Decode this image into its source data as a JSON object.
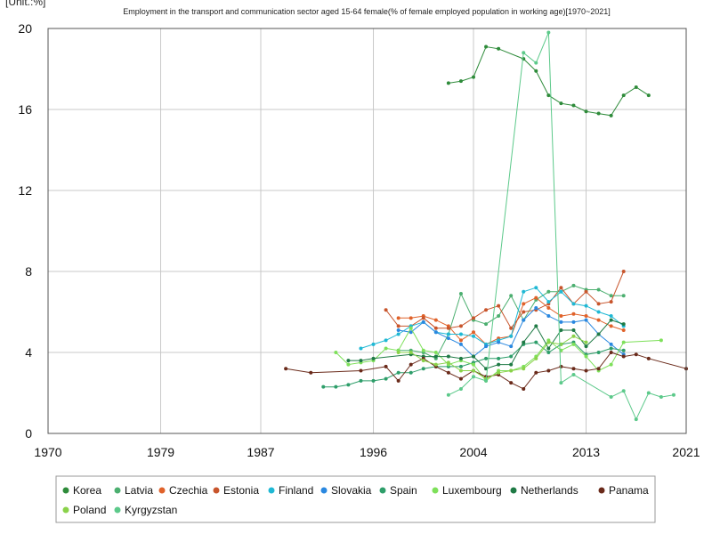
{
  "chart_data": {
    "type": "line",
    "unit_label": "[Unit.:%]",
    "title": "Employment in the transport and communication sector aged 15-64 female(% of female employed population in working age)[1970~2021]",
    "xlabel": "",
    "ylabel": "",
    "xlim": [
      1970,
      2021
    ],
    "ylim": [
      0,
      20
    ],
    "x_ticks": [
      1970,
      1979,
      1987,
      1996,
      2004,
      2013,
      2021
    ],
    "y_ticks": [
      0,
      4,
      8,
      12,
      16,
      20
    ],
    "grid": true,
    "legend_position": "bottom",
    "series": [
      {
        "name": "Korea",
        "color": "#2e8b3a",
        "points": [
          [
            2002,
            17.3
          ],
          [
            2003,
            17.4
          ],
          [
            2004,
            17.6
          ],
          [
            2005,
            19.1
          ],
          [
            2006,
            19.0
          ],
          [
            2008,
            18.5
          ],
          [
            2009,
            17.9
          ],
          [
            2010,
            16.7
          ],
          [
            2011,
            16.3
          ],
          [
            2012,
            16.2
          ],
          [
            2013,
            15.9
          ],
          [
            2014,
            15.8
          ],
          [
            2015,
            15.7
          ],
          [
            2016,
            16.7
          ],
          [
            2017,
            17.1
          ],
          [
            2018,
            16.7
          ]
        ]
      },
      {
        "name": "Latvia",
        "color": "#4caf70",
        "points": [
          [
            1998,
            4.1
          ],
          [
            1999,
            4.1
          ],
          [
            2000,
            4.0
          ],
          [
            2001,
            3.7
          ],
          [
            2002,
            4.9
          ],
          [
            2003,
            6.9
          ],
          [
            2004,
            5.6
          ],
          [
            2005,
            5.4
          ],
          [
            2006,
            5.8
          ],
          [
            2007,
            6.8
          ],
          [
            2008,
            5.6
          ],
          [
            2009,
            6.6
          ],
          [
            2010,
            7.0
          ],
          [
            2011,
            7.0
          ],
          [
            2012,
            7.3
          ],
          [
            2013,
            7.1
          ],
          [
            2014,
            7.1
          ],
          [
            2015,
            6.8
          ],
          [
            2016,
            6.8
          ]
        ]
      },
      {
        "name": "Czechia",
        "color": "#e0622a",
        "points": [
          [
            1998,
            5.7
          ],
          [
            1999,
            5.7
          ],
          [
            2000,
            5.8
          ],
          [
            2001,
            5.6
          ],
          [
            2002,
            5.3
          ],
          [
            2003,
            4.6
          ],
          [
            2004,
            5.0
          ],
          [
            2005,
            4.4
          ],
          [
            2006,
            4.7
          ],
          [
            2007,
            4.8
          ],
          [
            2008,
            6.4
          ],
          [
            2009,
            6.7
          ],
          [
            2010,
            6.2
          ],
          [
            2011,
            5.8
          ],
          [
            2012,
            5.9
          ],
          [
            2013,
            5.8
          ],
          [
            2014,
            5.6
          ],
          [
            2015,
            5.3
          ],
          [
            2016,
            5.1
          ]
        ]
      },
      {
        "name": "Estonia",
        "color": "#c8552c",
        "points": [
          [
            1997,
            6.1
          ],
          [
            1998,
            5.3
          ],
          [
            1999,
            5.3
          ],
          [
            2000,
            5.7
          ],
          [
            2001,
            5.2
          ],
          [
            2002,
            5.2
          ],
          [
            2003,
            5.3
          ],
          [
            2004,
            5.7
          ],
          [
            2005,
            6.1
          ],
          [
            2006,
            6.3
          ],
          [
            2007,
            5.2
          ],
          [
            2008,
            6.0
          ],
          [
            2009,
            6.1
          ],
          [
            2010,
            6.4
          ],
          [
            2011,
            7.2
          ],
          [
            2012,
            6.4
          ],
          [
            2013,
            7.0
          ],
          [
            2014,
            6.4
          ],
          [
            2015,
            6.5
          ],
          [
            2016,
            8.0
          ]
        ]
      },
      {
        "name": "Finland",
        "color": "#1fb8d4",
        "points": [
          [
            1995,
            4.2
          ],
          [
            1996,
            4.4
          ],
          [
            1997,
            4.6
          ],
          [
            1998,
            4.9
          ],
          [
            1999,
            5.3
          ],
          [
            2000,
            5.5
          ],
          [
            2001,
            5.0
          ],
          [
            2002,
            4.9
          ],
          [
            2003,
            4.9
          ],
          [
            2004,
            4.8
          ],
          [
            2005,
            4.4
          ],
          [
            2006,
            4.6
          ],
          [
            2007,
            4.8
          ],
          [
            2008,
            7.0
          ],
          [
            2009,
            7.2
          ],
          [
            2010,
            6.5
          ],
          [
            2011,
            7.0
          ],
          [
            2012,
            6.4
          ],
          [
            2013,
            6.3
          ],
          [
            2014,
            6.0
          ],
          [
            2015,
            5.8
          ],
          [
            2016,
            5.3
          ]
        ]
      },
      {
        "name": "Slovakia",
        "color": "#2a88e0",
        "points": [
          [
            1998,
            5.1
          ],
          [
            1999,
            5.0
          ],
          [
            2000,
            5.5
          ],
          [
            2001,
            5.0
          ],
          [
            2002,
            4.7
          ],
          [
            2003,
            4.4
          ],
          [
            2004,
            3.8
          ],
          [
            2005,
            4.3
          ],
          [
            2006,
            4.5
          ],
          [
            2007,
            4.3
          ],
          [
            2008,
            5.6
          ],
          [
            2009,
            6.2
          ],
          [
            2010,
            5.8
          ],
          [
            2011,
            5.5
          ],
          [
            2012,
            5.5
          ],
          [
            2013,
            5.6
          ],
          [
            2014,
            4.9
          ],
          [
            2015,
            4.4
          ],
          [
            2016,
            3.9
          ]
        ]
      },
      {
        "name": "Spain",
        "color": "#2e9e6a",
        "points": [
          [
            1992,
            2.3
          ],
          [
            1993,
            2.3
          ],
          [
            1994,
            2.4
          ],
          [
            1995,
            2.6
          ],
          [
            1996,
            2.6
          ],
          [
            1997,
            2.7
          ],
          [
            1998,
            3.0
          ],
          [
            1999,
            3.0
          ],
          [
            2000,
            3.2
          ],
          [
            2001,
            3.3
          ],
          [
            2002,
            3.3
          ],
          [
            2003,
            3.3
          ],
          [
            2004,
            3.5
          ],
          [
            2005,
            3.7
          ],
          [
            2006,
            3.7
          ],
          [
            2007,
            3.8
          ],
          [
            2008,
            4.4
          ],
          [
            2009,
            4.5
          ],
          [
            2010,
            4.0
          ],
          [
            2011,
            4.4
          ],
          [
            2012,
            4.5
          ],
          [
            2013,
            3.9
          ],
          [
            2014,
            4.0
          ],
          [
            2015,
            4.2
          ],
          [
            2016,
            4.1
          ]
        ]
      },
      {
        "name": "Luxembourg",
        "color": "#7ee05a",
        "points": [
          [
            1993,
            4.0
          ],
          [
            1994,
            3.4
          ],
          [
            1995,
            3.5
          ],
          [
            1996,
            3.6
          ],
          [
            1997,
            4.2
          ],
          [
            1998,
            4.1
          ],
          [
            1999,
            5.2
          ],
          [
            2000,
            4.1
          ],
          [
            2001,
            4.0
          ],
          [
            2002,
            3.4
          ],
          [
            2003,
            3.6
          ],
          [
            2004,
            3.4
          ],
          [
            2005,
            2.6
          ],
          [
            2006,
            3.1
          ],
          [
            2007,
            3.1
          ],
          [
            2008,
            3.3
          ],
          [
            2009,
            3.8
          ],
          [
            2010,
            4.6
          ],
          [
            2011,
            4.1
          ],
          [
            2012,
            4.4
          ],
          [
            2013,
            3.8
          ],
          [
            2014,
            3.1
          ],
          [
            2015,
            3.4
          ],
          [
            2016,
            4.5
          ],
          [
            2019,
            4.6
          ]
        ]
      },
      {
        "name": "Netherlands",
        "color": "#1f7a45",
        "points": [
          [
            1994,
            3.6
          ],
          [
            1995,
            3.6
          ],
          [
            1996,
            3.7
          ],
          [
            1999,
            3.9
          ],
          [
            2000,
            3.8
          ],
          [
            2001,
            3.8
          ],
          [
            2002,
            3.8
          ],
          [
            2003,
            3.7
          ],
          [
            2004,
            3.8
          ],
          [
            2005,
            3.2
          ],
          [
            2006,
            3.4
          ],
          [
            2007,
            3.4
          ],
          [
            2008,
            4.5
          ],
          [
            2009,
            5.3
          ],
          [
            2010,
            4.2
          ],
          [
            2011,
            5.1
          ],
          [
            2012,
            5.1
          ],
          [
            2013,
            4.3
          ],
          [
            2014,
            4.9
          ],
          [
            2015,
            5.6
          ],
          [
            2016,
            5.4
          ]
        ]
      },
      {
        "name": "Panama",
        "color": "#6a2a1a",
        "points": [
          [
            1989,
            3.2
          ],
          [
            1991,
            3.0
          ],
          [
            1995,
            3.1
          ],
          [
            1997,
            3.3
          ],
          [
            1998,
            2.6
          ],
          [
            1999,
            3.4
          ],
          [
            2000,
            3.7
          ],
          [
            2001,
            3.3
          ],
          [
            2002,
            3.0
          ],
          [
            2003,
            2.7
          ],
          [
            2004,
            3.1
          ],
          [
            2005,
            2.8
          ],
          [
            2006,
            2.9
          ],
          [
            2007,
            2.5
          ],
          [
            2008,
            2.2
          ],
          [
            2009,
            3.0
          ],
          [
            2010,
            3.1
          ],
          [
            2011,
            3.3
          ],
          [
            2012,
            3.2
          ],
          [
            2013,
            3.1
          ],
          [
            2014,
            3.2
          ],
          [
            2015,
            4.0
          ],
          [
            2016,
            3.8
          ],
          [
            2017,
            3.9
          ],
          [
            2018,
            3.7
          ],
          [
            2021,
            3.2
          ]
        ]
      },
      {
        "name": "Poland",
        "color": "#8ad24a",
        "points": [
          [
            1998,
            4.0
          ],
          [
            1999,
            4.0
          ],
          [
            2000,
            3.6
          ],
          [
            2001,
            3.4
          ],
          [
            2002,
            3.5
          ],
          [
            2003,
            3.1
          ],
          [
            2004,
            3.1
          ],
          [
            2005,
            2.7
          ],
          [
            2006,
            3.0
          ],
          [
            2007,
            3.1
          ],
          [
            2008,
            3.2
          ],
          [
            2009,
            3.7
          ],
          [
            2010,
            4.5
          ],
          [
            2011,
            4.4
          ],
          [
            2012,
            4.8
          ],
          [
            2013,
            4.5
          ]
        ]
      },
      {
        "name": "Kyrgyzstan",
        "color": "#5cc98a",
        "points": [
          [
            2002,
            1.9
          ],
          [
            2003,
            2.2
          ],
          [
            2004,
            2.8
          ],
          [
            2005,
            2.6
          ],
          [
            2008,
            18.8
          ],
          [
            2009,
            18.3
          ],
          [
            2010,
            19.8
          ],
          [
            2011,
            2.5
          ],
          [
            2012,
            2.9
          ],
          [
            2015,
            1.8
          ],
          [
            2016,
            2.1
          ],
          [
            2017,
            0.7
          ],
          [
            2018,
            2.0
          ],
          [
            2019,
            1.8
          ],
          [
            2020,
            1.9
          ]
        ]
      }
    ]
  }
}
